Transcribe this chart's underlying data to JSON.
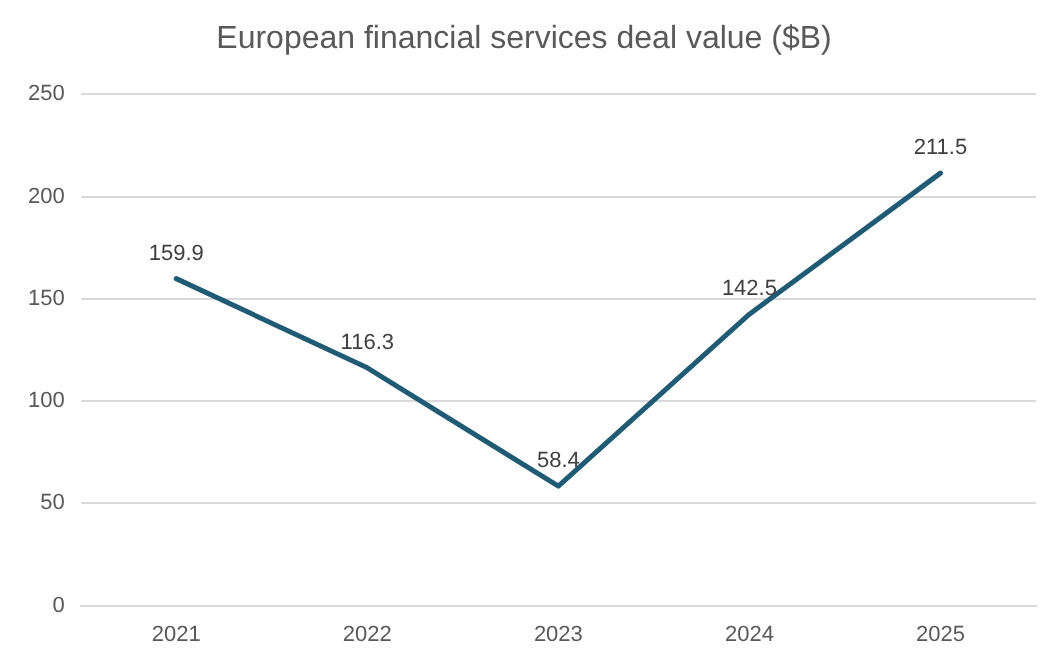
{
  "chart_data": {
    "type": "line",
    "title": "European financial services deal value ($B)",
    "categories": [
      "2021",
      "2022",
      "2023",
      "2024",
      "2025"
    ],
    "series": [
      {
        "color": "#1f5b75",
        "values": [
          159.9,
          116.3,
          58.4,
          142.5,
          211.5
        ]
      }
    ],
    "ylim": [
      0,
      250
    ],
    "yticks": [
      0,
      50,
      100,
      150,
      200,
      250
    ],
    "grid": "y",
    "legend": false,
    "marker": "none",
    "line_style": "solid",
    "data_labels": true
  }
}
